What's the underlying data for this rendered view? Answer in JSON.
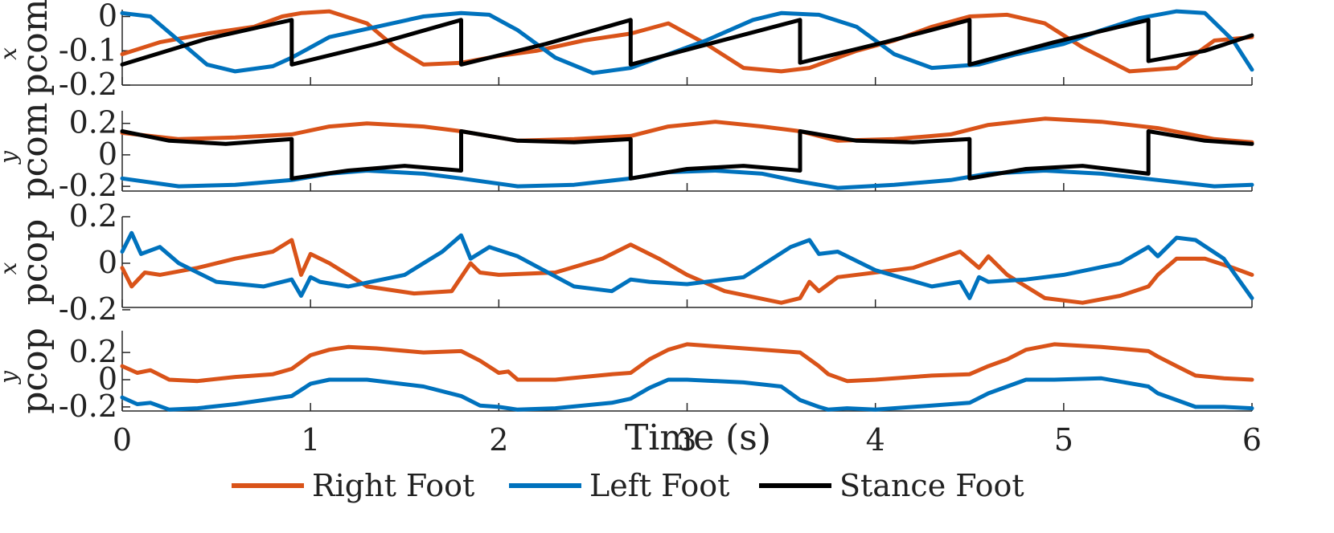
{
  "chart_data": {
    "type": "line",
    "xlabel": "Time (s)",
    "x_ticks": [
      0,
      1,
      2,
      3,
      4,
      5,
      6
    ],
    "xlim": [
      0,
      6
    ],
    "legend": {
      "placement": "bottom-center",
      "entries": [
        {
          "name": "Right Foot",
          "color": "#D95319"
        },
        {
          "name": "Left Foot",
          "color": "#0072BD"
        },
        {
          "name": "Stance Foot",
          "color": "#000000"
        }
      ]
    },
    "panels": [
      {
        "id": "pcom-x",
        "ylabel_base": "p",
        "ylabel_sub": "com",
        "ylabel_sup": "x",
        "ylim": [
          -0.2,
          0.02
        ],
        "y_ticks": [
          0,
          -0.1,
          -0.2
        ],
        "y_tick_labels": [
          "0",
          "-0.1",
          "-0.2"
        ],
        "series": [
          {
            "name": "Right Foot",
            "x": [
              0,
              0.2,
              0.45,
              0.7,
              0.85,
              0.95,
              1.1,
              1.3,
              1.45,
              1.6,
              1.8,
              2.0,
              2.2,
              2.45,
              2.7,
              2.9,
              3.1,
              3.3,
              3.5,
              3.65,
              3.9,
              4.1,
              4.3,
              4.5,
              4.7,
              4.9,
              5.1,
              5.35,
              5.6,
              5.8,
              6.0
            ],
            "values": [
              -0.11,
              -0.075,
              -0.05,
              -0.03,
              0.0,
              0.01,
              0.015,
              -0.02,
              -0.09,
              -0.14,
              -0.135,
              -0.115,
              -0.1,
              -0.07,
              -0.05,
              -0.02,
              -0.08,
              -0.15,
              -0.16,
              -0.15,
              -0.1,
              -0.07,
              -0.03,
              0.0,
              0.005,
              -0.02,
              -0.09,
              -0.16,
              -0.15,
              -0.07,
              -0.06
            ]
          },
          {
            "name": "Left Foot",
            "x": [
              0,
              0.15,
              0.3,
              0.45,
              0.6,
              0.8,
              0.9,
              1.1,
              1.35,
              1.6,
              1.8,
              1.95,
              2.1,
              2.3,
              2.5,
              2.7,
              2.85,
              3.1,
              3.35,
              3.5,
              3.7,
              3.9,
              4.1,
              4.3,
              4.55,
              4.75,
              5.0,
              5.2,
              5.4,
              5.6,
              5.75,
              5.9,
              6.0
            ],
            "values": [
              0.01,
              0.0,
              -0.07,
              -0.14,
              -0.16,
              -0.145,
              -0.12,
              -0.06,
              -0.03,
              0.0,
              0.01,
              0.005,
              -0.04,
              -0.12,
              -0.165,
              -0.15,
              -0.12,
              -0.07,
              -0.01,
              0.01,
              0.005,
              -0.03,
              -0.11,
              -0.15,
              -0.14,
              -0.11,
              -0.08,
              -0.04,
              -0.005,
              0.015,
              0.01,
              -0.07,
              -0.155
            ]
          },
          {
            "name": "Stance Foot",
            "x": [
              0,
              0.45,
              0.9,
              0.9,
              1.35,
              1.8,
              1.8,
              2.25,
              2.7,
              2.7,
              3.15,
              3.6,
              3.6,
              4.05,
              4.5,
              4.5,
              4.95,
              5.45,
              5.45,
              5.75,
              6.0
            ],
            "values": [
              -0.14,
              -0.065,
              -0.01,
              -0.14,
              -0.08,
              -0.01,
              -0.14,
              -0.08,
              -0.01,
              -0.14,
              -0.075,
              -0.01,
              -0.135,
              -0.075,
              -0.01,
              -0.14,
              -0.075,
              -0.01,
              -0.13,
              -0.1,
              -0.055
            ]
          }
        ]
      },
      {
        "id": "pcom-y",
        "ylabel_base": "p",
        "ylabel_sub": "com",
        "ylabel_sup": "y",
        "ylim": [
          -0.23,
          0.28
        ],
        "y_ticks": [
          0.2,
          0,
          -0.2
        ],
        "y_tick_labels": [
          "0.2",
          "0",
          "-0.2"
        ],
        "series": [
          {
            "name": "Right Foot",
            "x": [
              0,
              0.3,
              0.6,
              0.9,
              1.1,
              1.3,
              1.6,
              1.8,
              2.1,
              2.4,
              2.7,
              2.9,
              3.15,
              3.4,
              3.6,
              3.8,
              4.1,
              4.4,
              4.6,
              4.9,
              5.2,
              5.5,
              5.8,
              6.0
            ],
            "values": [
              0.14,
              0.1,
              0.11,
              0.13,
              0.18,
              0.2,
              0.18,
              0.15,
              0.09,
              0.1,
              0.12,
              0.18,
              0.21,
              0.18,
              0.15,
              0.09,
              0.1,
              0.13,
              0.19,
              0.23,
              0.21,
              0.17,
              0.1,
              0.08
            ]
          },
          {
            "name": "Left Foot",
            "x": [
              0,
              0.3,
              0.6,
              0.9,
              1.1,
              1.3,
              1.6,
              1.8,
              2.1,
              2.4,
              2.7,
              2.9,
              3.15,
              3.4,
              3.6,
              3.8,
              4.1,
              4.4,
              4.6,
              4.9,
              5.2,
              5.5,
              5.8,
              6.0
            ],
            "values": [
              -0.15,
              -0.2,
              -0.19,
              -0.16,
              -0.12,
              -0.1,
              -0.12,
              -0.15,
              -0.2,
              -0.19,
              -0.15,
              -0.11,
              -0.1,
              -0.12,
              -0.17,
              -0.21,
              -0.19,
              -0.16,
              -0.12,
              -0.1,
              -0.12,
              -0.16,
              -0.2,
              -0.19
            ]
          },
          {
            "name": "Stance Foot",
            "x": [
              0,
              0.25,
              0.55,
              0.9,
              0.9,
              1.2,
              1.5,
              1.8,
              1.8,
              2.1,
              2.4,
              2.7,
              2.7,
              3.0,
              3.3,
              3.6,
              3.6,
              3.9,
              4.2,
              4.5,
              4.5,
              4.8,
              5.1,
              5.45,
              5.45,
              5.75,
              6.0
            ],
            "values": [
              0.15,
              0.09,
              0.07,
              0.1,
              -0.15,
              -0.1,
              -0.07,
              -0.1,
              0.15,
              0.09,
              0.08,
              0.1,
              -0.15,
              -0.09,
              -0.07,
              -0.1,
              0.15,
              0.09,
              0.08,
              0.1,
              -0.15,
              -0.09,
              -0.07,
              -0.12,
              0.15,
              0.09,
              0.07
            ]
          }
        ]
      },
      {
        "id": "pcop-x",
        "ylabel_base": "p",
        "ylabel_sub": "cop",
        "ylabel_sup": "x",
        "ylim": [
          -0.19,
          0.2
        ],
        "y_ticks": [
          0.2,
          0,
          -0.2
        ],
        "y_tick_labels": [
          "0.2",
          "0",
          "-0.2"
        ],
        "series": [
          {
            "name": "Right Foot",
            "x": [
              0,
              0.05,
              0.12,
              0.2,
              0.4,
              0.6,
              0.8,
              0.9,
              0.95,
              1.0,
              1.1,
              1.3,
              1.55,
              1.75,
              1.85,
              1.9,
              2.0,
              2.3,
              2.55,
              2.7,
              2.85,
              3.0,
              3.2,
              3.5,
              3.6,
              3.65,
              3.7,
              3.8,
              4.2,
              4.45,
              4.55,
              4.6,
              4.7,
              4.9,
              5.1,
              5.3,
              5.45,
              5.5,
              5.6,
              5.75,
              5.9,
              6.0
            ],
            "values": [
              -0.02,
              -0.1,
              -0.04,
              -0.05,
              -0.02,
              0.02,
              0.05,
              0.1,
              -0.05,
              0.04,
              0.0,
              -0.1,
              -0.13,
              -0.12,
              0.0,
              -0.04,
              -0.05,
              -0.04,
              0.02,
              0.08,
              0.02,
              -0.05,
              -0.12,
              -0.17,
              -0.15,
              -0.08,
              -0.12,
              -0.06,
              -0.02,
              0.05,
              -0.02,
              0.03,
              -0.05,
              -0.15,
              -0.17,
              -0.14,
              -0.1,
              -0.05,
              0.02,
              0.02,
              -0.02,
              -0.05
            ]
          },
          {
            "name": "Left Foot",
            "x": [
              0,
              0.05,
              0.1,
              0.2,
              0.3,
              0.5,
              0.75,
              0.9,
              0.95,
              1.0,
              1.05,
              1.2,
              1.5,
              1.7,
              1.8,
              1.85,
              1.95,
              2.1,
              2.4,
              2.6,
              2.7,
              2.8,
              3.0,
              3.3,
              3.55,
              3.65,
              3.7,
              3.8,
              4.0,
              4.3,
              4.45,
              4.5,
              4.55,
              4.6,
              4.8,
              5.0,
              5.3,
              5.45,
              5.5,
              5.6,
              5.7,
              5.85,
              6.0
            ],
            "values": [
              0.05,
              0.13,
              0.04,
              0.07,
              0.0,
              -0.08,
              -0.1,
              -0.07,
              -0.14,
              -0.06,
              -0.08,
              -0.1,
              -0.05,
              0.05,
              0.12,
              0.02,
              0.07,
              0.03,
              -0.1,
              -0.12,
              -0.07,
              -0.08,
              -0.09,
              -0.06,
              0.07,
              0.1,
              0.04,
              0.05,
              -0.03,
              -0.1,
              -0.08,
              -0.15,
              -0.06,
              -0.08,
              -0.07,
              -0.05,
              0.0,
              0.07,
              0.03,
              0.11,
              0.1,
              0.02,
              -0.15
            ]
          }
        ]
      },
      {
        "id": "pcop-y",
        "ylabel_base": "p",
        "ylabel_sub": "cop",
        "ylabel_sup": "y",
        "ylim": [
          -0.23,
          0.36
        ],
        "y_ticks": [
          0.2,
          0,
          -0.2
        ],
        "y_tick_labels": [
          "0.2",
          "0",
          "-0.2"
        ],
        "series": [
          {
            "name": "Right Foot",
            "x": [
              0,
              0.08,
              0.15,
              0.25,
              0.4,
              0.6,
              0.8,
              0.9,
              1.0,
              1.1,
              1.2,
              1.35,
              1.6,
              1.8,
              1.9,
              2.0,
              2.05,
              2.1,
              2.3,
              2.6,
              2.7,
              2.8,
              2.9,
              3.0,
              3.2,
              3.5,
              3.6,
              3.7,
              3.75,
              3.85,
              4.0,
              4.3,
              4.5,
              4.6,
              4.7,
              4.8,
              4.95,
              5.2,
              5.45,
              5.5,
              5.6,
              5.7,
              5.85,
              6.0
            ],
            "values": [
              0.1,
              0.05,
              0.07,
              0.0,
              -0.01,
              0.02,
              0.04,
              0.08,
              0.18,
              0.22,
              0.24,
              0.23,
              0.2,
              0.21,
              0.14,
              0.05,
              0.06,
              0.0,
              0.0,
              0.04,
              0.05,
              0.15,
              0.22,
              0.26,
              0.24,
              0.21,
              0.2,
              0.1,
              0.04,
              -0.01,
              0.0,
              0.03,
              0.04,
              0.1,
              0.15,
              0.22,
              0.26,
              0.24,
              0.21,
              0.17,
              0.1,
              0.03,
              0.01,
              0.0
            ]
          },
          {
            "name": "Left Foot",
            "x": [
              0,
              0.08,
              0.15,
              0.25,
              0.4,
              0.6,
              0.8,
              0.9,
              1.0,
              1.1,
              1.3,
              1.6,
              1.8,
              1.9,
              2.0,
              2.1,
              2.3,
              2.6,
              2.7,
              2.8,
              2.9,
              3.0,
              3.3,
              3.5,
              3.6,
              3.7,
              3.75,
              3.85,
              4.0,
              4.3,
              4.5,
              4.6,
              4.7,
              4.8,
              4.95,
              5.2,
              5.45,
              5.5,
              5.6,
              5.7,
              5.85,
              6.0
            ],
            "values": [
              -0.13,
              -0.18,
              -0.17,
              -0.22,
              -0.21,
              -0.18,
              -0.14,
              -0.12,
              -0.03,
              0.0,
              0.0,
              -0.05,
              -0.12,
              -0.19,
              -0.2,
              -0.22,
              -0.21,
              -0.17,
              -0.14,
              -0.06,
              0.0,
              0.0,
              -0.02,
              -0.05,
              -0.15,
              -0.2,
              -0.22,
              -0.21,
              -0.22,
              -0.19,
              -0.17,
              -0.1,
              -0.05,
              0.0,
              0.0,
              0.01,
              -0.05,
              -0.1,
              -0.15,
              -0.2,
              -0.2,
              -0.21
            ]
          }
        ]
      }
    ]
  }
}
